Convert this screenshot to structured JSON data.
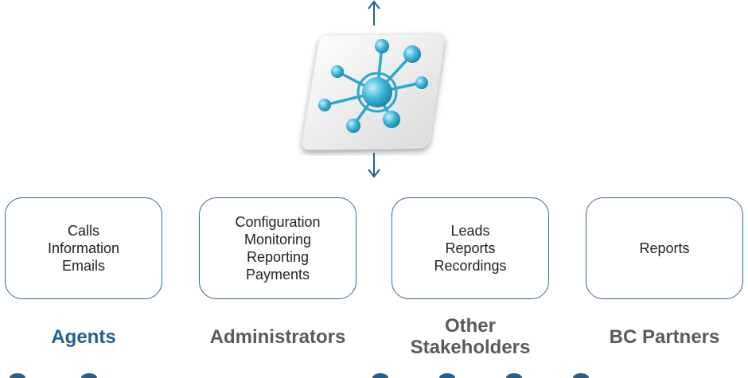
{
  "cards": [
    {
      "items": [
        "Calls",
        "Information",
        "Emails"
      ]
    },
    {
      "items": [
        "Configuration",
        "Monitoring",
        "Reporting",
        "Payments"
      ]
    },
    {
      "items": [
        "Leads",
        "Reports",
        "Recordings"
      ]
    },
    {
      "items": [
        "Reports"
      ]
    }
  ],
  "roles": [
    {
      "lines": [
        "Agents"
      ]
    },
    {
      "lines": [
        "Administrators"
      ]
    },
    {
      "lines": [
        "Other",
        "Stakeholders"
      ]
    },
    {
      "lines": [
        "BC Partners"
      ]
    }
  ],
  "colors": {
    "accent": "#1f5f94",
    "role_text": "#5a5a5a",
    "card_border": "#2f6b96",
    "hub_node": "#3fb8d8"
  },
  "icons": {
    "hub": "network-hub-icon",
    "arrow_up": "arrow-up-icon",
    "arrow_down": "arrow-down-icon"
  }
}
